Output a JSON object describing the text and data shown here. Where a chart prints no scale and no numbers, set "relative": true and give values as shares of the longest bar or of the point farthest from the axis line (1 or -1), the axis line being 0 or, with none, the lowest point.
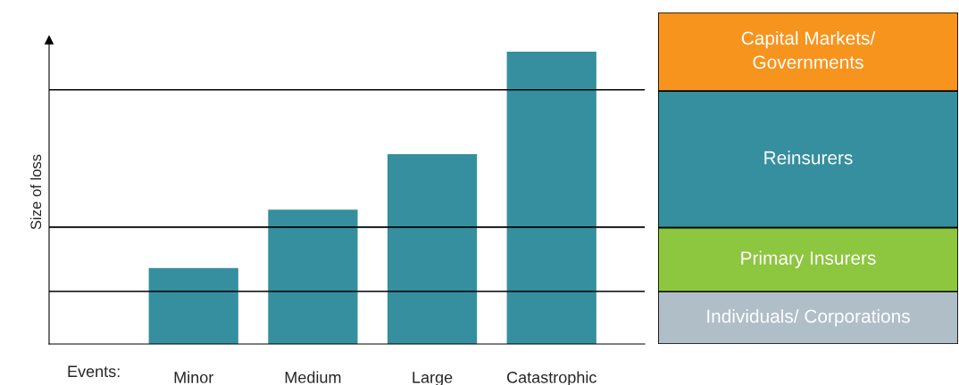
{
  "chart_data": [
    {
      "type": "bar",
      "relative": true,
      "ylabel": "Size of loss",
      "xlabel": "Events:",
      "categories": [
        "Minor",
        "Medium",
        "Large",
        "Catastrophic"
      ],
      "values": [
        0.26,
        0.46,
        0.65,
        1.0
      ],
      "color": "#358f9e",
      "grid": false,
      "ref_lines": [
        {
          "axis": "y",
          "value": 0.18,
          "color": "#000000"
        },
        {
          "axis": "y",
          "value": 0.4,
          "color": "#000000"
        },
        {
          "axis": "y",
          "value": 0.87,
          "color": "#000000"
        }
      ]
    },
    {
      "type": "bar",
      "relative": true,
      "stacked": true,
      "categories": [
        null
      ],
      "series": [
        {
          "name": "Individuals/ Corporations",
          "color": "#b0bec8",
          "values": [
            0.158
          ]
        },
        {
          "name": "Primary Insurers",
          "color": "#8dc63f",
          "values": [
            0.193
          ]
        },
        {
          "name": "Reinsurers",
          "color": "#358f9e",
          "values": [
            0.412
          ]
        },
        {
          "name": "Capital Markets/\nGovernments",
          "color": "#f7941d",
          "values": [
            0.237
          ]
        }
      ]
    }
  ]
}
